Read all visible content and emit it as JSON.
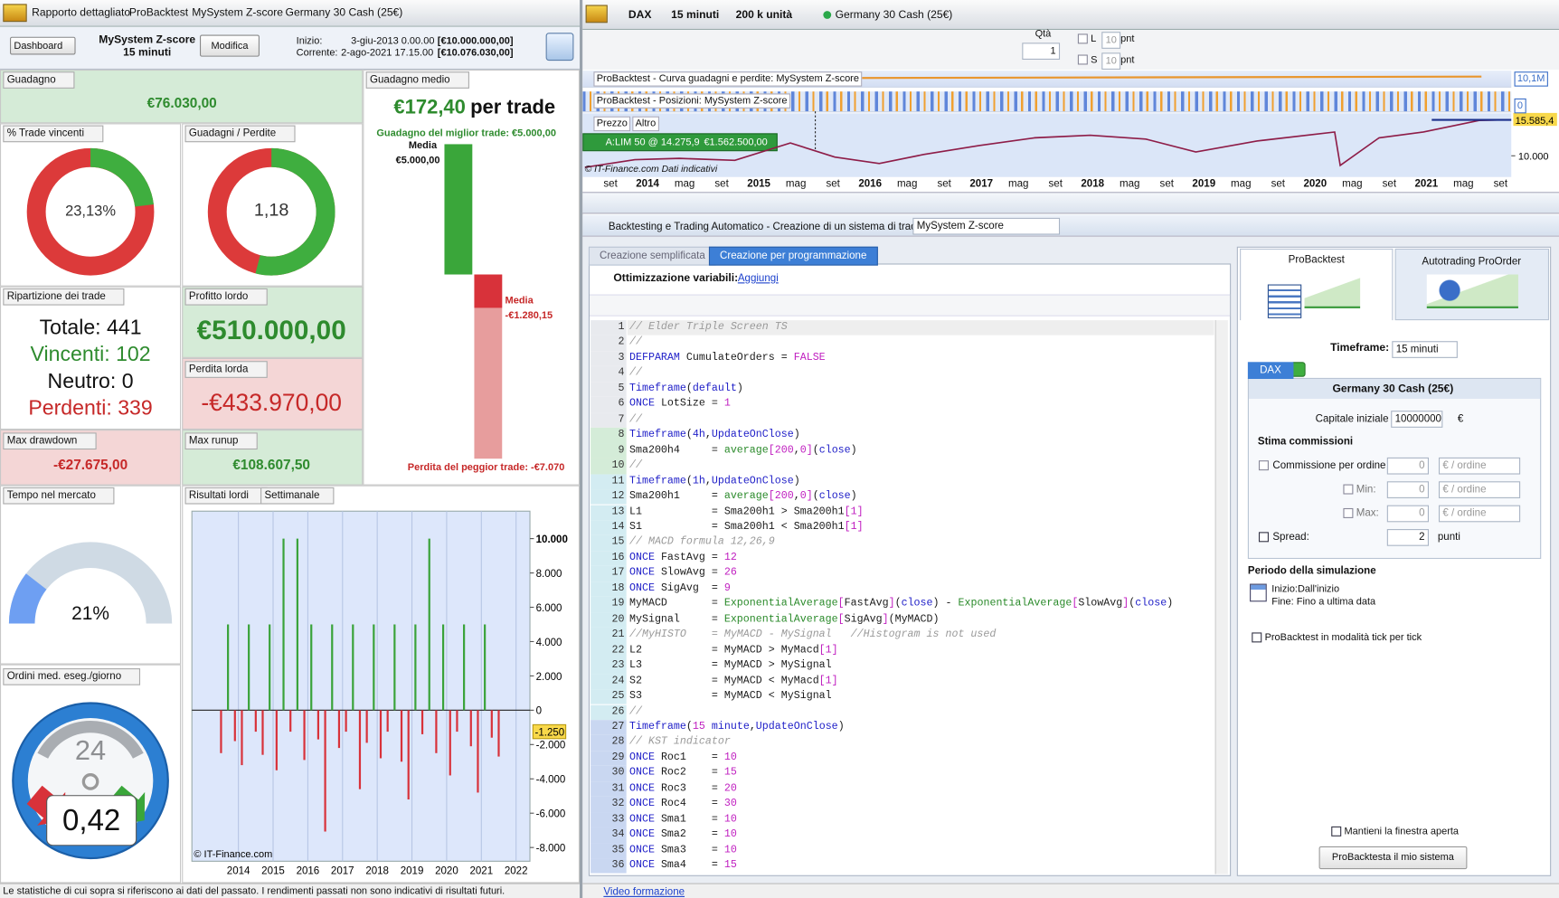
{
  "left_panel": {
    "tabs": [
      "Rapporto dettagliato",
      "ProBacktest",
      "MySystem Z-score",
      "Germany 30 Cash (25€)"
    ],
    "header": {
      "view_select": "Dashboard",
      "system": "MySystem Z-score",
      "timeframe": "15 minuti",
      "edit_button": "Modifica",
      "start_label": "Inizio:",
      "start_date": "3-giu-2013 0.00.00",
      "start_capital": "[€10.000.000,00]",
      "current_label": "Corrente:",
      "current_date": "2-ago-2021 17.15.00",
      "current_capital": "[€10.076.030,00]"
    },
    "gain": {
      "title": "Guadagno",
      "value": "€76.030,00"
    },
    "win_rate": {
      "title": "% Trade vincenti",
      "value": 23.13,
      "label": "23,13%"
    },
    "gain_loss_ratio": {
      "title": "Guadagni / Perdite",
      "value": "1,18"
    },
    "avg_gain": {
      "title": "Guadagno medio",
      "value": "€172,40",
      "unit": "per trade",
      "best_label": "Guadagno del miglior trade: €5.000,00",
      "best": 5000,
      "avg_win_title": "Media",
      "avg_win": 5000,
      "avg_win_label": "€5.000,00",
      "avg_loss_title": "Media",
      "avg_loss": -1280.15,
      "avg_loss_label": "-€1.280,15",
      "worst": -7070,
      "worst_label": "Perdita del peggior trade: -€7.070"
    },
    "trades": {
      "title": "Ripartizione dei trade",
      "total": "Totale: 441",
      "winners": "Vincenti: 102",
      "neutral": "Neutro: 0",
      "losers": "Perdenti: 339"
    },
    "gross_profit": {
      "title": "Profitto lordo",
      "value": 510000,
      "label": "€510.000,00"
    },
    "gross_loss": {
      "title": "Perdita lorda",
      "value": -433970,
      "label": "-€433.970,00"
    },
    "max_drawdown": {
      "title": "Max drawdown",
      "value": "-€27.675,00"
    },
    "max_runup": {
      "title": "Max runup",
      "value": "€108.607,50"
    },
    "time_in_market": {
      "title": "Tempo nel mercato",
      "value": 21,
      "label": "21%"
    },
    "orders": {
      "title": "Ordini med. eseg./giorno",
      "hours": "24",
      "value": "0,42"
    },
    "footnote": "Le statistiche di cui sopra si riferiscono ai dati del passato. I rendimenti passati non sono indicativi di risultati futuri."
  },
  "chart_data": {
    "type": "bar",
    "title": "Risultati lordi",
    "period": "Settimanale",
    "x": [
      2013.5,
      2013.7,
      2013.9,
      2014.1,
      2014.3,
      2014.5,
      2014.7,
      2014.9,
      2015.1,
      2015.3,
      2015.5,
      2015.7,
      2015.9,
      2016.1,
      2016.3,
      2016.5,
      2016.7,
      2016.9,
      2017.1,
      2017.3,
      2017.5,
      2017.7,
      2017.9,
      2018.1,
      2018.3,
      2018.5,
      2018.7,
      2018.9,
      2019.1,
      2019.3,
      2019.5,
      2019.7,
      2019.9,
      2020.1,
      2020.3,
      2020.5,
      2020.7,
      2020.9,
      2021.1,
      2021.3,
      2021.5
    ],
    "values": [
      -2500,
      5000,
      -1800,
      -3200,
      5000,
      -1250,
      -2600,
      5000,
      -3500,
      10000,
      -1250,
      10000,
      -2900,
      5000,
      -1700,
      -7070,
      5000,
      -2200,
      -1250,
      5000,
      -4600,
      -1900,
      5000,
      -2800,
      -1250,
      5000,
      -3000,
      -5200,
      5000,
      -1400,
      10000,
      -2500,
      5000,
      -3800,
      -1250,
      5000,
      -2100,
      -4800,
      5000,
      -1600,
      -2700
    ],
    "colors": {
      "positive": "#3aa33a",
      "negative": "#d8323a"
    },
    "xlim": [
      2012.66,
      2022.4
    ],
    "xticks": [
      2014,
      2015,
      2016,
      2017,
      2018,
      2019,
      2020,
      2021,
      2022
    ],
    "ylim": [
      -8800,
      11600
    ],
    "yticks": [
      {
        "value": 10000,
        "label": "10.000"
      },
      {
        "value": 8000,
        "label": "8.000"
      },
      {
        "value": 6000,
        "label": "6.000"
      },
      {
        "value": 4000,
        "label": "4.000"
      },
      {
        "value": 2000,
        "label": "2.000"
      },
      0,
      {
        "value": -2000,
        "label": "-2.000"
      },
      {
        "value": -4000,
        "label": "-4.000"
      },
      {
        "value": -6000,
        "label": "-6.000"
      },
      {
        "value": -8000,
        "label": "-8.000"
      }
    ],
    "marker": {
      "value": -1250,
      "label": "-1.250"
    },
    "grid": true,
    "credit": "© IT-Finance.com"
  },
  "price_window": {
    "instrument": "DAX",
    "timeframe": "15 minuti",
    "units": "200 k unità",
    "product": "Germany 30 Cash (25€)",
    "qty_label": "Qtà",
    "qty": "1",
    "long_label": "L",
    "long_pts": "10",
    "long_unit": "pnt",
    "short_label": "S",
    "short_pts": "10",
    "short_unit": "pnt",
    "equity_title": "ProBacktest - Curva guadagni e perdite: MySystem Z-score",
    "equity_label": "10,1M",
    "positions_title": "ProBacktest - Posizioni: MySystem Z-score",
    "positions_label": "0",
    "price_tab": "Prezzo",
    "other_tab": "Altro",
    "order_label": "A:LIM  50 @ 14.275,9",
    "order_value": "€1.562.500,00",
    "credit": "© IT-Finance.com  Dati indicativi",
    "price": {
      "x": [
        2013.45,
        2013.9,
        2014.3,
        2014.8,
        2015.3,
        2015.7,
        2016.1,
        2016.5,
        2017.0,
        2017.5,
        2018.0,
        2018.5,
        2018.95,
        2019.5,
        2020.0,
        2020.2,
        2020.25,
        2020.6,
        2021.0,
        2021.5,
        2021.75
      ],
      "values": [
        8200,
        9400,
        9600,
        9300,
        12000,
        9800,
        8800,
        10200,
        11600,
        12800,
        13200,
        12600,
        10600,
        12300,
        13300,
        13700,
        8500,
        12800,
        13700,
        15500,
        15600
      ]
    },
    "xlim": [
      2013.43,
      2021.79
    ],
    "ylim": [
      6700,
      16600
    ],
    "ytick": {
      "value": 10000,
      "label": "10.000"
    },
    "last": {
      "value": 15585.4,
      "label": "15.585,4"
    },
    "axis_labels": [
      "set",
      "2014",
      "mag",
      "set",
      "2015",
      "mag",
      "set",
      "2016",
      "mag",
      "set",
      "2017",
      "mag",
      "set",
      "2018",
      "mag",
      "set",
      "2019",
      "mag",
      "set",
      "2020",
      "mag",
      "set",
      "2021",
      "mag",
      "set"
    ]
  },
  "editor": {
    "window_title": "Backtesting e Trading Automatico - Creazione di un sistema di trading",
    "system_name": "MySystem Z-score",
    "tabs": [
      "Creazione semplificata",
      "Creazione per programmazione"
    ],
    "optimization_label": "Ottimizzazione variabili:",
    "add_link": "Aggiungi",
    "lines": [
      {
        "number": 1,
        "text": "// Elder Triple Screen TS"
      },
      {
        "number": 2,
        "text": "//"
      },
      {
        "number": 3,
        "text": "DEFPARAM CumulateOrders = FALSE"
      },
      {
        "number": 4,
        "text": "//"
      },
      {
        "number": 5,
        "text": "Timeframe(default)"
      },
      {
        "number": 6,
        "text": "ONCE LotSize = 1"
      },
      {
        "number": 7,
        "text": "//"
      },
      {
        "number": 8,
        "text": "Timeframe(4h,UpdateOnClose)"
      },
      {
        "number": 9,
        "text": "Sma200h4     = average[200,0](close)"
      },
      {
        "number": 10,
        "text": "//"
      },
      {
        "number": 11,
        "text": "Timeframe(1h,UpdateOnClose)"
      },
      {
        "number": 12,
        "text": "Sma200h1     = average[200,0](close)"
      },
      {
        "number": 13,
        "text": "L1           = Sma200h1 > Sma200h1[1]"
      },
      {
        "number": 14,
        "text": "S1           = Sma200h1 < Sma200h1[1]"
      },
      {
        "number": 15,
        "text": "// MACD formula 12,26,9"
      },
      {
        "number": 16,
        "text": "ONCE FastAvg = 12"
      },
      {
        "number": 17,
        "text": "ONCE SlowAvg = 26"
      },
      {
        "number": 18,
        "text": "ONCE SigAvg  = 9"
      },
      {
        "number": 19,
        "text": "MyMACD       = ExponentialAverage[FastAvg](close) - ExponentialAverage[SlowAvg](close)"
      },
      {
        "number": 20,
        "text": "MySignal     = ExponentialAverage[SigAvg](MyMACD)"
      },
      {
        "number": 21,
        "text": "//MyHISTO    = MyMACD - MySignal   //Histogram is not used"
      },
      {
        "number": 22,
        "text": "L2           = MyMACD > MyMacd[1]"
      },
      {
        "number": 23,
        "text": "L3           = MyMACD > MySignal"
      },
      {
        "number": 24,
        "text": "S2           = MyMACD < MyMacd[1]"
      },
      {
        "number": 25,
        "text": "S3           = MyMACD < MySignal"
      },
      {
        "number": 26,
        "text": "//"
      },
      {
        "number": 27,
        "text": "Timeframe(15 minute,UpdateOnClose)"
      },
      {
        "number": 28,
        "text": "// KST indicator"
      },
      {
        "number": 29,
        "text": "ONCE Roc1    = 10"
      },
      {
        "number": 30,
        "text": "ONCE Roc2    = 15"
      },
      {
        "number": 31,
        "text": "ONCE Roc3    = 20"
      },
      {
        "number": 32,
        "text": "ONCE Roc4    = 30"
      },
      {
        "number": 33,
        "text": "ONCE Sma1    = 10"
      },
      {
        "number": 34,
        "text": "ONCE Sma2    = 10"
      },
      {
        "number": 35,
        "text": "ONCE Sma3    = 10"
      },
      {
        "number": 36,
        "text": "ONCE Sma4    = 15"
      }
    ],
    "footer_link": "Video formazione"
  },
  "settings_panel": {
    "tabs": [
      "ProBacktest",
      "Autotrading ProOrder"
    ],
    "timeframe_label": "Timeframe:",
    "timeframe": "15 minuti",
    "instrument_tab": "DAX",
    "product": "Germany 30 Cash (25€)",
    "capital_label": "Capitale iniziale :",
    "capital": "10000000",
    "capital_unit": "€",
    "fees_title": "Stima commissioni",
    "fee_label": "Commissione per ordine :",
    "fee": "0",
    "fee_unit": "€ / ordine",
    "min_label": "Min:",
    "min": "0",
    "min_unit": "€ / ordine",
    "max_label": "Max:",
    "max": "0",
    "max_unit": "€ / ordine",
    "spread_label": "Spread:",
    "spread": "2",
    "spread_unit": "punti",
    "period_title": "Periodo della simulazione",
    "period_start": "Inizio:Dall'inizio",
    "period_end": "Fine: Fino a ultima data",
    "tick_mode": "ProBacktest in modalità tick per tick",
    "keep_open": "Mantieni la finestra aperta",
    "run_button": "ProBacktesta il mio sistema"
  }
}
